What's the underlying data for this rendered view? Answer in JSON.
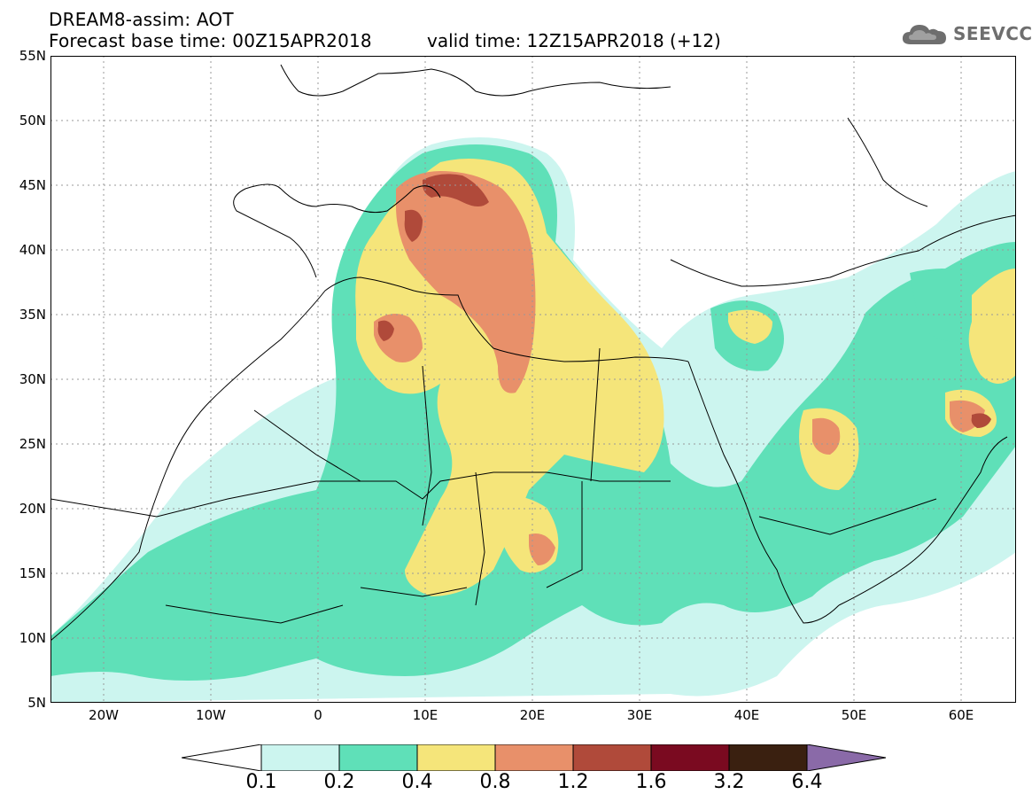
{
  "header": {
    "title": "DREAM8-assim: AOT",
    "forecast_base": "Forecast base time: 00Z15APR2018",
    "valid_time": "valid time: 12Z15APR2018 (+12)",
    "logo_text": "SEEVCCC"
  },
  "axes": {
    "lat_labels": [
      "55N",
      "50N",
      "45N",
      "40N",
      "35N",
      "30N",
      "25N",
      "20N",
      "15N",
      "10N",
      "5N"
    ],
    "lon_labels": [
      "20W",
      "10W",
      "0",
      "10E",
      "20E",
      "30E",
      "40E",
      "50E",
      "60E"
    ],
    "lat_range": [
      5,
      55
    ],
    "lon_range": [
      -25,
      65
    ]
  },
  "legend": {
    "levels": [
      "0.1",
      "0.2",
      "0.4",
      "0.8",
      "1.2",
      "1.6",
      "3.2",
      "6.4"
    ],
    "colors": [
      "#ccf5ef",
      "#5fe0b8",
      "#f5e57a",
      "#e8906a",
      "#b04a3a",
      "#7a0a20",
      "#3a2010",
      "#8a6aa8"
    ],
    "under_color": "#ffffff",
    "over_color": "#8a6aa8"
  }
}
